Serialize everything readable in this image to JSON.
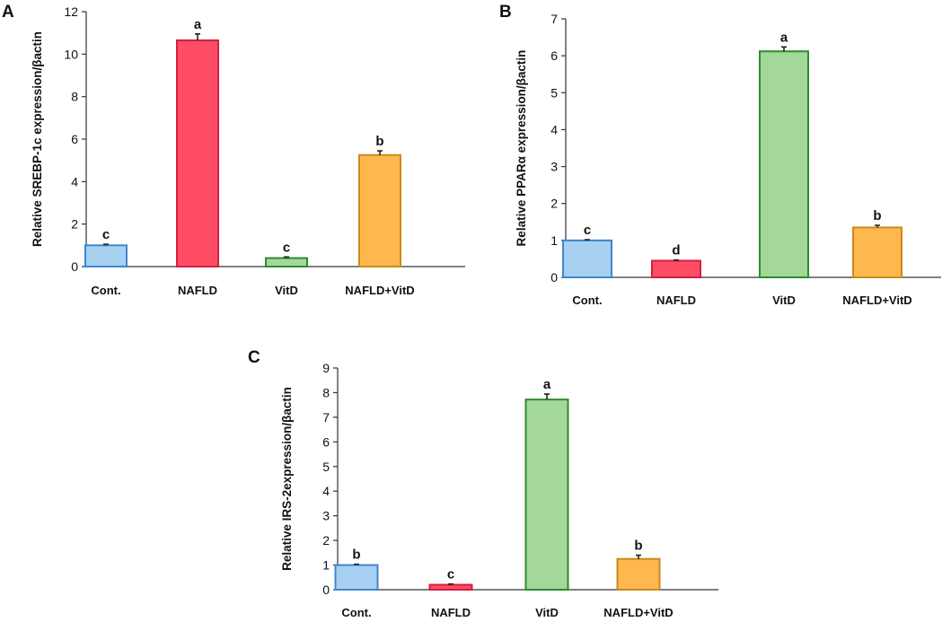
{
  "chart_data": [
    {
      "panel": "A",
      "type": "bar",
      "ylabel": "Relative SREBP-1c expression/βactin",
      "xlabel": "",
      "categories": [
        "Cont.",
        "NAFLD",
        "VitD",
        "NAFLD+VitD"
      ],
      "values": [
        1.0,
        10.65,
        0.4,
        5.25
      ],
      "errors": [
        0.05,
        0.3,
        0.05,
        0.2
      ],
      "significance": [
        "c",
        "a",
        "c",
        "b"
      ],
      "ylim": [
        0,
        12
      ],
      "yticks": [
        0,
        2,
        4,
        6,
        8,
        10,
        12
      ],
      "grid": false
    },
    {
      "panel": "B",
      "type": "bar",
      "ylabel": "Relative PPARα expression/βactin",
      "xlabel": "",
      "categories": [
        "Cont.",
        "NAFLD",
        "VitD",
        "NAFLD+VitD"
      ],
      "values": [
        1.0,
        0.45,
        6.12,
        1.35
      ],
      "errors": [
        0.02,
        0.02,
        0.12,
        0.06
      ],
      "significance": [
        "c",
        "d",
        "a",
        "b"
      ],
      "ylim": [
        0,
        7
      ],
      "yticks": [
        0,
        1,
        2,
        3,
        4,
        5,
        6,
        7
      ],
      "grid": false
    },
    {
      "panel": "C",
      "type": "bar",
      "ylabel": "Relative IRS-2expression/βactin",
      "xlabel": "",
      "categories": [
        "Cont.",
        "NAFLD",
        "VitD",
        "NAFLD+VitD"
      ],
      "values": [
        1.0,
        0.2,
        7.72,
        1.25
      ],
      "errors": [
        0.03,
        0.03,
        0.22,
        0.15
      ],
      "significance": [
        "b",
        "c",
        "a",
        "b"
      ],
      "ylim": [
        0,
        9
      ],
      "yticks": [
        0,
        1,
        2,
        3,
        4,
        5,
        6,
        7,
        8,
        9
      ],
      "grid": false
    }
  ],
  "colors": {
    "Cont.": {
      "fill": "#a8d0f0",
      "stroke": "#3f86d0"
    },
    "NAFLD": {
      "fill": "#ff4d66",
      "stroke": "#d02040"
    },
    "VitD": {
      "fill": "#a3d89a",
      "stroke": "#2e8b2e"
    },
    "NAFLD+VitD": {
      "fill": "#ffb84d",
      "stroke": "#c98a1d"
    }
  }
}
